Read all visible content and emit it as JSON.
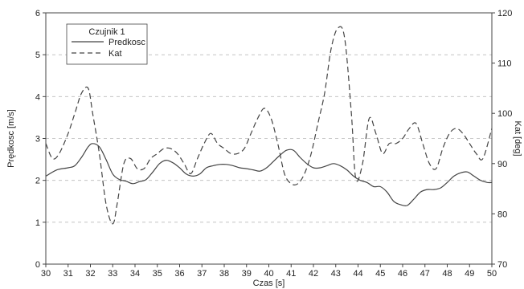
{
  "chart_data": {
    "type": "line",
    "title": "",
    "xlabel": "Czas [s]",
    "ylabel_left": "Prędkosc [m/s]",
    "ylabel_right": "Kat [deg]",
    "xlim": [
      30,
      50
    ],
    "ylim_left": [
      0,
      6
    ],
    "ylim_right": [
      70,
      120
    ],
    "x_ticks": [
      "30",
      "31",
      "32",
      "33",
      "34",
      "35",
      "36",
      "37",
      "38",
      "39",
      "40",
      "41",
      "42",
      "43",
      "44",
      "45",
      "46",
      "47",
      "48",
      "49",
      "50"
    ],
    "y_ticks_left": [
      "0",
      "1",
      "2",
      "3",
      "4",
      "5",
      "6"
    ],
    "y_ticks_right": [
      "70",
      "80",
      "90",
      "100",
      "110",
      "120"
    ],
    "grid": "horizontal dashed",
    "legend": {
      "title": "Czujnik 1",
      "position": "top-left",
      "entries": [
        "Predkosc",
        "Kat"
      ]
    },
    "series": [
      {
        "name": "Predkosc",
        "axis": "left",
        "style": "solid",
        "color": "#444444",
        "x": [
          30.0,
          30.5,
          31.0,
          31.3,
          31.6,
          31.9,
          32.1,
          32.4,
          32.7,
          33.0,
          33.3,
          33.6,
          33.9,
          34.2,
          34.5,
          34.8,
          35.1,
          35.4,
          35.7,
          36.0,
          36.3,
          36.6,
          36.9,
          37.2,
          37.5,
          37.8,
          38.1,
          38.4,
          38.7,
          39.0,
          39.3,
          39.6,
          39.9,
          40.2,
          40.5,
          40.8,
          41.1,
          41.4,
          41.7,
          42.0,
          42.3,
          42.6,
          42.9,
          43.2,
          43.5,
          43.8,
          44.1,
          44.4,
          44.7,
          45.0,
          45.3,
          45.6,
          45.9,
          46.2,
          46.5,
          46.8,
          47.1,
          47.4,
          47.7,
          48.0,
          48.3,
          48.6,
          48.9,
          49.2,
          49.5,
          49.8,
          50.0
        ],
        "values": [
          2.1,
          2.25,
          2.3,
          2.35,
          2.55,
          2.8,
          2.88,
          2.8,
          2.5,
          2.15,
          2.02,
          1.98,
          1.92,
          1.97,
          2.02,
          2.2,
          2.4,
          2.48,
          2.42,
          2.3,
          2.15,
          2.1,
          2.15,
          2.3,
          2.35,
          2.38,
          2.38,
          2.35,
          2.3,
          2.28,
          2.25,
          2.22,
          2.3,
          2.45,
          2.6,
          2.72,
          2.72,
          2.55,
          2.4,
          2.3,
          2.3,
          2.35,
          2.4,
          2.35,
          2.25,
          2.1,
          2.0,
          1.95,
          1.85,
          1.85,
          1.72,
          1.5,
          1.42,
          1.4,
          1.55,
          1.72,
          1.78,
          1.78,
          1.82,
          1.95,
          2.1,
          2.18,
          2.2,
          2.1,
          2.0,
          1.95,
          1.95
        ]
      },
      {
        "name": "Kat",
        "axis": "right",
        "style": "dashed",
        "color": "#444444",
        "x": [
          30.0,
          30.3,
          30.6,
          31.0,
          31.3,
          31.6,
          31.9,
          32.1,
          32.4,
          32.7,
          33.0,
          33.2,
          33.5,
          33.8,
          34.1,
          34.4,
          34.7,
          35.0,
          35.3,
          35.6,
          35.9,
          36.2,
          36.5,
          36.8,
          37.1,
          37.4,
          37.7,
          38.0,
          38.3,
          38.6,
          38.9,
          39.2,
          39.5,
          39.8,
          40.1,
          40.4,
          40.7,
          41.0,
          41.3,
          41.6,
          41.9,
          42.2,
          42.5,
          42.8,
          43.1,
          43.4,
          43.7,
          43.9,
          44.2,
          44.5,
          44.8,
          45.1,
          45.4,
          45.7,
          46.0,
          46.3,
          46.6,
          46.9,
          47.2,
          47.5,
          47.8,
          48.1,
          48.4,
          48.7,
          49.0,
          49.3,
          49.6,
          50.0
        ],
        "values": [
          94,
          91,
          92,
          96,
          100,
          104,
          105,
          100,
          92,
          82,
          78,
          82,
          90,
          91,
          89,
          89,
          91,
          92,
          93,
          93,
          92,
          90,
          88,
          91,
          94,
          96,
          94,
          93,
          92,
          92,
          93,
          96,
          99,
          101,
          99,
          94,
          88,
          86,
          86,
          88,
          92,
          98,
          104,
          113,
          117,
          115,
          100,
          87,
          90,
          99,
          96,
          92,
          94,
          94,
          95,
          97,
          98,
          94,
          90,
          89,
          93,
          96,
          97,
          96,
          94,
          92,
          91,
          97
        ]
      }
    ]
  }
}
